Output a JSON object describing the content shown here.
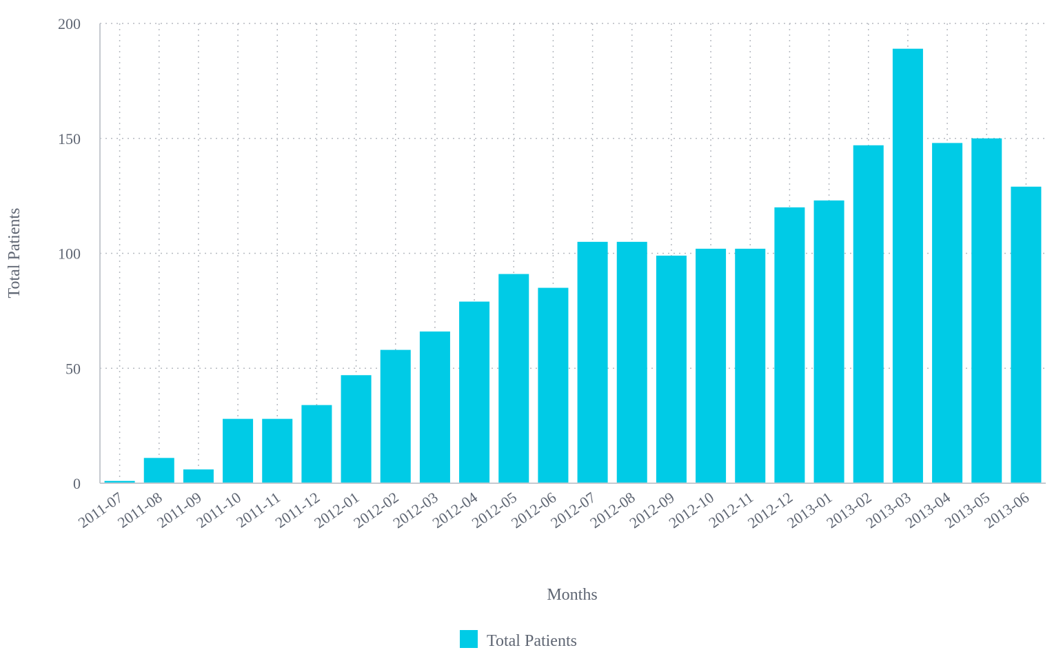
{
  "chart_data": {
    "type": "bar",
    "categories": [
      "2011-07",
      "2011-08",
      "2011-09",
      "2011-10",
      "2011-11",
      "2011-12",
      "2012-01",
      "2012-02",
      "2012-03",
      "2012-04",
      "2012-05",
      "2012-06",
      "2012-07",
      "2012-08",
      "2012-09",
      "2012-10",
      "2012-11",
      "2012-12",
      "2013-01",
      "2013-02",
      "2013-03",
      "2013-04",
      "2013-05",
      "2013-06"
    ],
    "series": [
      {
        "name": "Total Patients",
        "color": "#00cbe6",
        "values": [
          1,
          11,
          6,
          28,
          28,
          34,
          47,
          58,
          66,
          79,
          91,
          85,
          105,
          105,
          99,
          102,
          102,
          120,
          123,
          147,
          189,
          148,
          150,
          129
        ]
      }
    ],
    "xlabel": "Months",
    "ylabel": "Total Patients",
    "ylim": [
      0,
      200
    ],
    "yticks": [
      0,
      50,
      100,
      150,
      200
    ],
    "grid": true,
    "legend_position": "bottom-center"
  }
}
